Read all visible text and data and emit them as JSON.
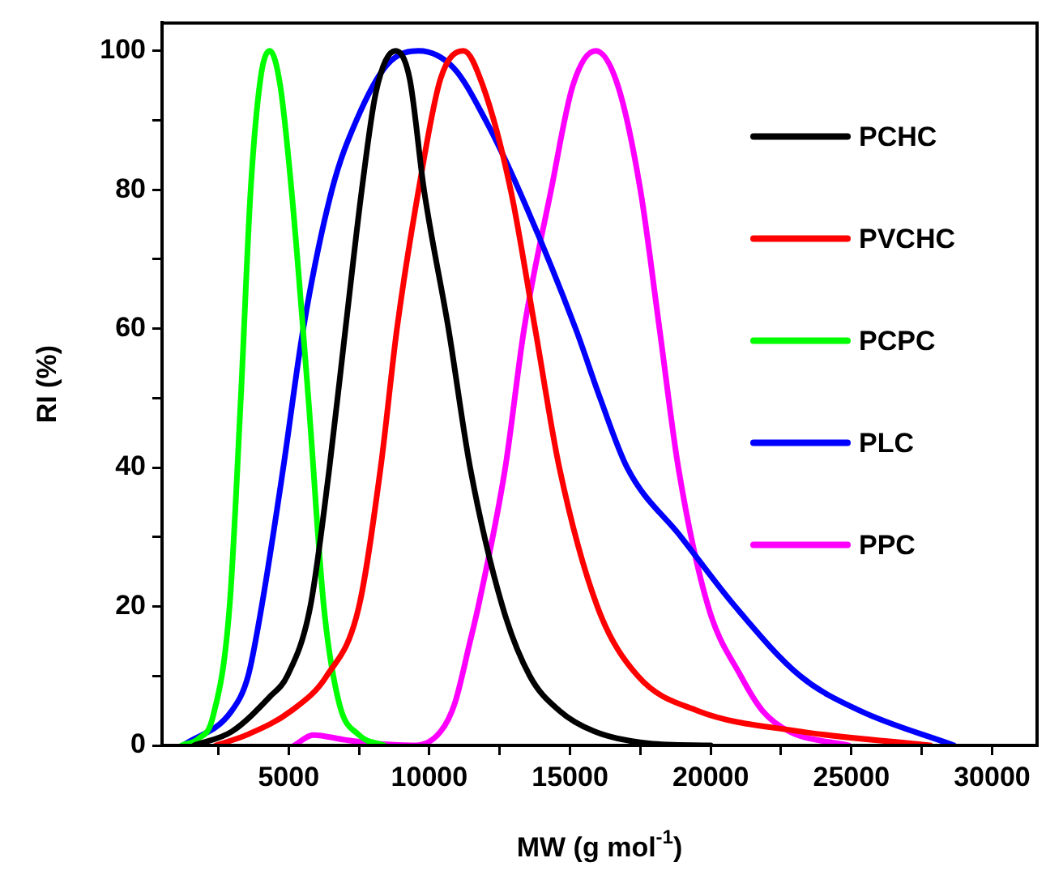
{
  "chart_data": {
    "type": "line",
    "xlabel": "MW (g mol$^{-1}$)",
    "ylabel": "RI (%)",
    "xlim": [
      500,
      31600
    ],
    "ylim": [
      0,
      104
    ],
    "xticks": [
      {
        "value": 2500,
        "label": null
      },
      5000,
      {
        "value": 7500,
        "label": null
      },
      10000,
      {
        "value": 12500,
        "label": null
      },
      15000,
      {
        "value": 17500,
        "label": null
      },
      20000,
      {
        "value": 22500,
        "label": null
      },
      25000,
      {
        "value": 27500,
        "label": null
      },
      30000
    ],
    "yticks": [
      0,
      {
        "value": 10,
        "label": null
      },
      20,
      {
        "value": 30,
        "label": null
      },
      40,
      {
        "value": 50,
        "label": null
      },
      60,
      {
        "value": 70,
        "label": null
      },
      80,
      {
        "value": 90,
        "label": null
      },
      100
    ],
    "grid": false,
    "legend": "top right",
    "marker": "none",
    "line_style": "solid",
    "series": [
      {
        "name": "PCHC",
        "color": "#000000",
        "x": [
          1640,
          2980,
          4330,
          4950,
          5770,
          6450,
          7020,
          7600,
          8100,
          8790,
          9300,
          9810,
          10680,
          11450,
          12600,
          13570,
          14620,
          15870,
          17800,
          20000
        ],
        "values": [
          0,
          2,
          7,
          10,
          20,
          40,
          60,
          80,
          94,
          100,
          96,
          80,
          60,
          40,
          20,
          10,
          5,
          2,
          0.3,
          0
        ]
      },
      {
        "name": "PVCHC",
        "color": "#ff0000",
        "x": [
          2410,
          3500,
          5100,
          6350,
          7500,
          8270,
          8850,
          9620,
          10400,
          11220,
          11900,
          12890,
          13760,
          14620,
          15970,
          17410,
          19530,
          23200,
          27800
        ],
        "values": [
          0,
          1.5,
          5,
          10,
          20,
          40,
          60,
          80,
          96,
          100,
          95,
          80,
          60,
          40,
          20,
          10,
          5,
          2,
          0
        ]
      },
      {
        "name": "PCPC",
        "color": "#00ff00",
        "x": [
          1200,
          1800,
          2300,
          2900,
          3300,
          3650,
          4000,
          4330,
          4700,
          5100,
          5700,
          6250,
          6800,
          7500,
          8400
        ],
        "values": [
          0,
          1,
          4,
          20,
          50,
          80,
          96,
          100,
          95,
          80,
          50,
          20,
          6,
          1.5,
          0
        ]
      },
      {
        "name": "PLC",
        "color": "#0000ff",
        "x": [
          1250,
          2980,
          3560,
          4040,
          4810,
          5520,
          6540,
          7410,
          8500,
          9620,
          10870,
          12000,
          13180,
          15200,
          16070,
          17030,
          18950,
          20870,
          23180,
          25300,
          28650
        ],
        "values": [
          0,
          5,
          10,
          20,
          40,
          60,
          80,
          90,
          98,
          100,
          97.5,
          90,
          80,
          60,
          50,
          40,
          30,
          20,
          10,
          5,
          0
        ]
      },
      {
        "name": "PPC",
        "color": "#ff00ff",
        "x": [
          5200,
          5870,
          7000,
          8000,
          9500,
          10400,
          10900,
          11450,
          11740,
          12700,
          13370,
          14330,
          15100,
          15910,
          16700,
          17500,
          18180,
          18850,
          19910,
          21070,
          21840,
          22800,
          24900
        ],
        "values": [
          0,
          1.5,
          0.8,
          0.3,
          0,
          2,
          6,
          15,
          20,
          40,
          60,
          80,
          95,
          100,
          95,
          80,
          60,
          40,
          20,
          10,
          5,
          2,
          0
        ]
      }
    ]
  }
}
